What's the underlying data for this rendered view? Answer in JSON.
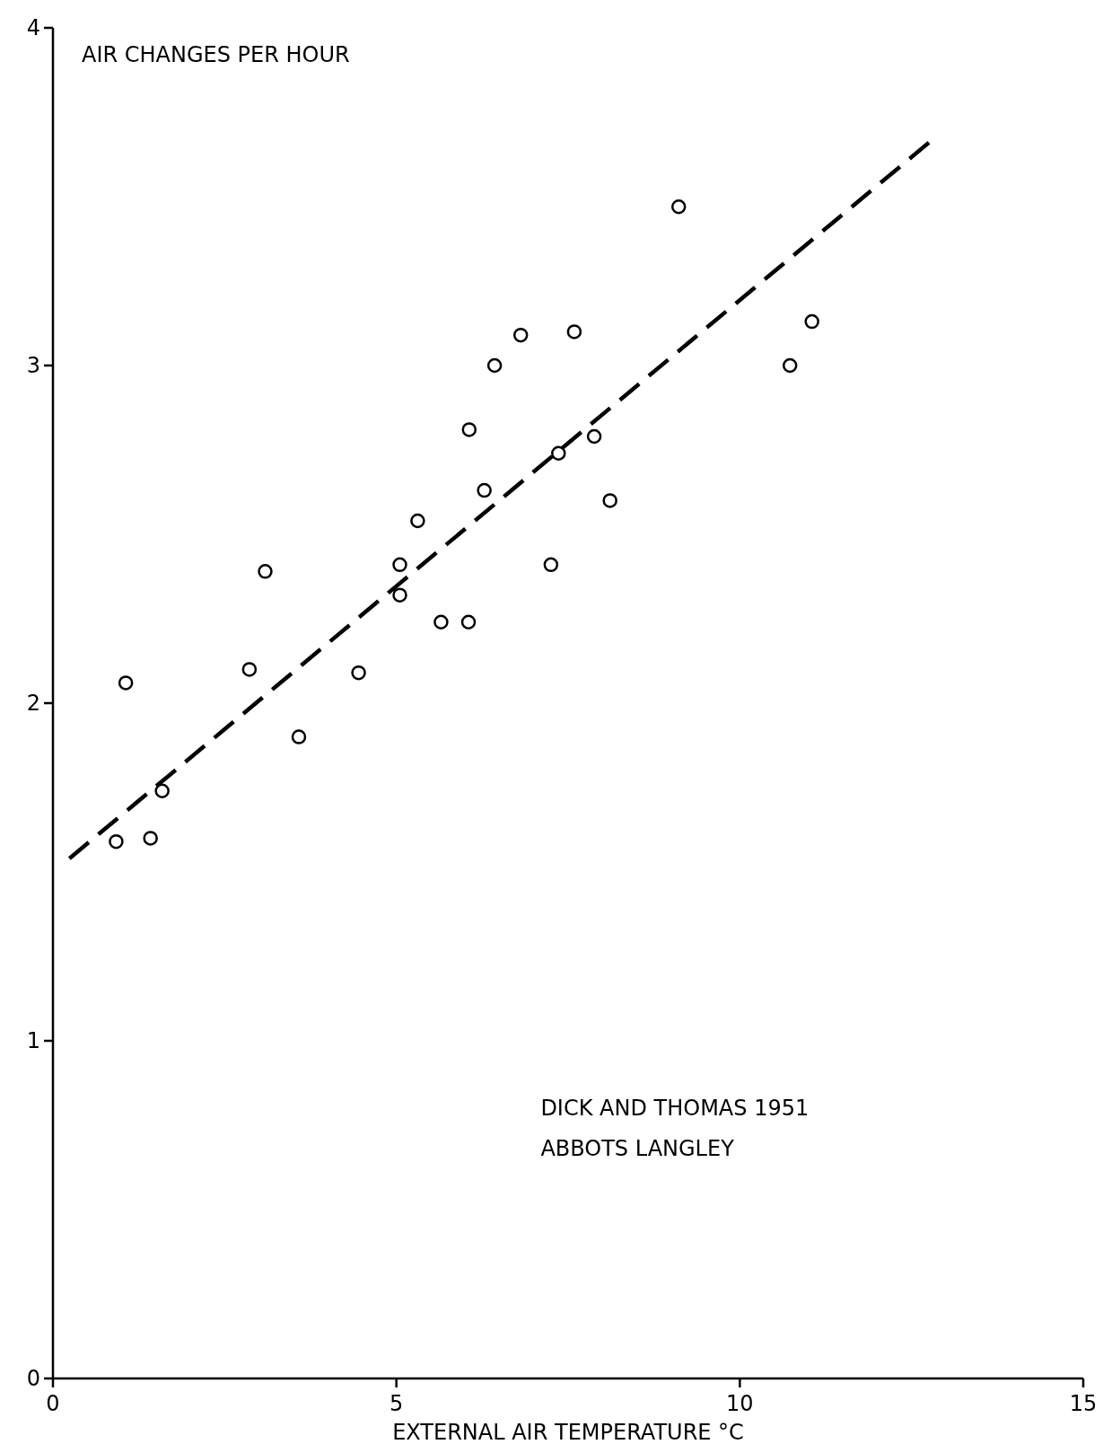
{
  "chart_data": {
    "type": "scatter",
    "xlabel": "EXTERNAL AIR TEMPERATURE °C",
    "ylabel": "AIR CHANGES PER HOUR",
    "xlim": [
      0,
      15
    ],
    "ylim": [
      0,
      4
    ],
    "xticks": [
      0,
      5,
      10,
      15
    ],
    "yticks": [
      0,
      1,
      2,
      3,
      4
    ],
    "grid": false,
    "marker": "circle",
    "annotations": [
      "DICK AND THOMAS 1951",
      "ABBOTS LANGLEY"
    ],
    "series": [
      {
        "color": "#000000",
        "x": [
          0.92,
          1.42,
          1.59,
          1.06,
          2.86,
          3.09,
          3.58,
          4.45,
          5.05,
          5.05,
          5.31,
          5.65,
          6.05,
          6.06,
          6.28,
          6.43,
          6.81,
          7.25,
          7.36,
          7.59,
          7.88,
          8.11,
          9.11,
          10.73,
          11.05
        ],
        "values": [
          1.59,
          1.6,
          1.74,
          2.06,
          2.1,
          2.39,
          1.9,
          2.09,
          2.41,
          2.32,
          2.54,
          2.24,
          2.24,
          2.81,
          2.63,
          3.0,
          3.09,
          2.41,
          2.74,
          3.1,
          2.79,
          2.6,
          3.47,
          3.0,
          3.13
        ]
      },
      {
        "type": "line",
        "color": "#000000",
        "marker": "none",
        "line_style": "dashed",
        "x": [
          0.24,
          12.87
        ],
        "values": [
          1.54,
          3.68
        ]
      }
    ]
  }
}
